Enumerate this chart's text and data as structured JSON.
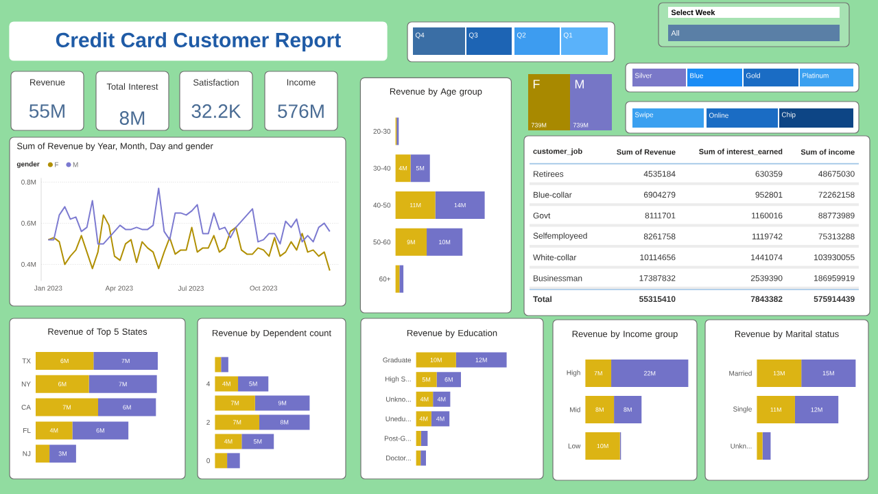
{
  "chart_data": [
    {
      "type": "other",
      "title": "Credit Card Customer Report",
      "annotations": [
        "Revenue",
        "55M",
        "Total Interest",
        "8M",
        "Satisfaction",
        "32.2K",
        "Income",
        "576M",
        "Q4",
        "Q3",
        "Q2",
        "Q1",
        "Select Week",
        "All",
        "Silver",
        "Blue",
        "Gold",
        "Platinum",
        "Swipe",
        "Online",
        "Chip"
      ]
    },
    {
      "type": "line",
      "title": "Sum of Revenue by Year, Month, Day and gender",
      "legend_title": "gender",
      "legend": "top left",
      "grid": "y",
      "x": [
        "2023-01-01",
        "2023-01-08",
        "2023-01-15",
        "2023-01-22",
        "2023-01-29",
        "2023-02-05",
        "2023-02-12",
        "2023-02-19",
        "2023-02-26",
        "2023-03-05",
        "2023-03-12",
        "2023-03-19",
        "2023-03-26",
        "2023-04-02",
        "2023-04-09",
        "2023-04-16",
        "2023-04-23",
        "2023-04-30",
        "2023-05-07",
        "2023-05-14",
        "2023-05-21",
        "2023-05-28",
        "2023-06-04",
        "2023-06-11",
        "2023-06-18",
        "2023-06-25",
        "2023-07-02",
        "2023-07-09",
        "2023-07-16",
        "2023-07-23",
        "2023-07-30",
        "2023-08-06",
        "2023-08-13",
        "2023-08-20",
        "2023-08-27",
        "2023-09-03",
        "2023-09-10",
        "2023-09-17",
        "2023-09-24",
        "2023-10-01",
        "2023-10-08",
        "2023-10-15",
        "2023-10-22",
        "2023-10-29",
        "2023-11-05",
        "2023-11-12",
        "2023-11-19",
        "2023-11-26",
        "2023-12-03",
        "2023-12-10",
        "2023-12-17",
        "2023-12-24"
      ],
      "xlim": [
        "2022-12-23",
        "2024-01-04"
      ],
      "xticks": [
        {
          "value": "2023-01-01",
          "label": "Jan 2023"
        },
        {
          "value": "2023-04-01",
          "label": "Apr 2023"
        },
        {
          "value": "2023-07-01",
          "label": "Jul 2023"
        },
        {
          "value": "2023-10-01",
          "label": "Oct 2023"
        }
      ],
      "ylim": [
        0.32,
        0.82
      ],
      "yticks": [
        {
          "value": 0.4,
          "label": "0.4M"
        },
        {
          "value": 0.6,
          "label": "0.6M"
        },
        {
          "value": 0.8,
          "label": "0.8M"
        }
      ],
      "series": [
        {
          "name": "F",
          "color": "#b08f00",
          "values": [
            0.52,
            0.53,
            0.51,
            0.4,
            0.44,
            0.47,
            0.54,
            0.46,
            0.38,
            0.46,
            0.64,
            0.59,
            0.44,
            0.42,
            0.5,
            0.52,
            0.41,
            0.51,
            0.48,
            0.46,
            0.38,
            0.46,
            0.53,
            0.45,
            0.47,
            0.47,
            0.58,
            0.46,
            0.48,
            0.48,
            0.54,
            0.46,
            0.48,
            0.56,
            0.58,
            0.47,
            0.45,
            0.45,
            0.48,
            0.47,
            0.44,
            0.53,
            0.44,
            0.46,
            0.51,
            0.47,
            0.55,
            0.46,
            0.47,
            0.44,
            0.46,
            0.37
          ]
        },
        {
          "name": "M",
          "color": "#7b79d0",
          "values": [
            0.52,
            0.52,
            0.64,
            0.68,
            0.62,
            0.63,
            0.56,
            0.58,
            0.71,
            0.5,
            0.5,
            0.53,
            0.56,
            0.59,
            0.57,
            0.57,
            0.58,
            0.57,
            0.57,
            0.59,
            0.77,
            0.56,
            0.52,
            0.65,
            0.65,
            0.64,
            0.66,
            0.69,
            0.55,
            0.55,
            0.65,
            0.57,
            0.58,
            0.53,
            0.58,
            0.61,
            0.64,
            0.67,
            0.51,
            0.52,
            0.55,
            0.55,
            0.5,
            0.61,
            0.58,
            0.62,
            0.51,
            0.54,
            0.51,
            0.58,
            0.6,
            0.56
          ]
        }
      ]
    },
    {
      "type": "bar",
      "orientation": "horizontal",
      "stacked": true,
      "tick_labels": "y",
      "title": "Revenue by Age group",
      "categories": [
        "20-30",
        "30-40",
        "40-50",
        "50-60",
        "60+"
      ],
      "series": [
        {
          "color": "#dcb414",
          "values": [
            0.3,
            4.2,
            11.1,
            8.7,
            1.1
          ],
          "value_labels": [
            null,
            "4M",
            "11M",
            "9M",
            null
          ]
        },
        {
          "color": "#7272c8",
          "values": [
            0.6,
            5.4,
            13.8,
            10.0,
            1.1
          ],
          "value_labels": [
            null,
            "5M",
            "14M",
            "10M",
            null
          ]
        }
      ]
    },
    {
      "type": "other",
      "categories": [
        "F",
        "M"
      ],
      "values": [
        739,
        739
      ],
      "value_labels": [
        "739M",
        "739M"
      ],
      "colors": [
        "#a88900",
        "#7676c6"
      ]
    },
    {
      "type": "other",
      "annotations": [
        "customer_job"
      ],
      "categories": [
        "Retirees",
        "Blue-collar",
        "Govt",
        "Selfemployeed",
        "White-collar",
        "Businessman",
        "Total"
      ],
      "series": [
        {
          "name": "Sum of Revenue",
          "values": [
            4535184,
            6904279,
            8111701,
            8261758,
            10114656,
            17387832,
            55315410
          ],
          "value_labels": [
            "4535184",
            "6904279",
            "8111701",
            "8261758",
            "10114656",
            "17387832",
            "55315410"
          ]
        },
        {
          "name": "Sum of interest_earned",
          "values": [
            630359,
            952801,
            1160016,
            1119742,
            1441074,
            2539390,
            7843382
          ],
          "value_labels": [
            "630359",
            "952801",
            "1160016",
            "1119742",
            "1441074",
            "2539390",
            "7843382"
          ]
        },
        {
          "name": "Sum of income",
          "values": [
            48675030,
            72262158,
            88773989,
            75313288,
            103930055,
            186959919,
            575914439
          ],
          "value_labels": [
            "48675030",
            "72262158",
            "88773989",
            "75313288",
            "103930055",
            "186959919",
            "575914439"
          ]
        }
      ]
    },
    {
      "type": "bar",
      "orientation": "horizontal",
      "stacked": true,
      "tick_labels": "y",
      "title": "Revenue of Top 5 States",
      "categories": [
        "TX",
        "NY",
        "CA",
        "FL",
        "NJ"
      ],
      "series": [
        {
          "color": "#dcb414",
          "values": [
            6.3,
            5.8,
            6.8,
            4.0,
            1.5
          ],
          "value_labels": [
            "6M",
            "6M",
            "7M",
            "4M",
            null
          ]
        },
        {
          "color": "#7272c8",
          "values": [
            7.0,
            7.4,
            6.3,
            6.1,
            2.9
          ],
          "value_labels": [
            "7M",
            "7M",
            "6M",
            "6M",
            "3M"
          ]
        }
      ]
    },
    {
      "type": "bar",
      "orientation": "horizontal",
      "stacked": true,
      "tick_labels": "y",
      "title": "Revenue by Dependent count",
      "categories": [
        null,
        "4",
        null,
        "2",
        null,
        "0"
      ],
      "series": [
        {
          "color": "#dcb414",
          "values": [
            1.0,
            3.8,
            6.6,
            7.3,
            4.4,
            2.0
          ],
          "value_labels": [
            null,
            "4M",
            "7M",
            "7M",
            "4M",
            null
          ]
        },
        {
          "color": "#7272c8",
          "values": [
            1.2,
            5.0,
            9.0,
            8.3,
            5.3,
            2.1
          ],
          "value_labels": [
            null,
            "5M",
            "9M",
            "8M",
            "5M",
            null
          ]
        }
      ]
    },
    {
      "type": "bar",
      "orientation": "horizontal",
      "stacked": true,
      "tick_labels": "y",
      "title": "Revenue by Education",
      "categories": [
        "Graduate",
        "High S...",
        "Unkno...",
        "Unedu...",
        "Post-G...",
        "Doctor..."
      ],
      "series": [
        {
          "color": "#dcb414",
          "values": [
            9.7,
            5.0,
            4.1,
            3.7,
            1.2,
            1.1
          ],
          "value_labels": [
            "10M",
            "5M",
            "4M",
            "4M",
            null,
            null
          ]
        },
        {
          "color": "#7272c8",
          "values": [
            12.3,
            5.9,
            4.2,
            4.4,
            1.6,
            1.3
          ],
          "value_labels": [
            "12M",
            "6M",
            "4M",
            "4M",
            null,
            null
          ]
        }
      ]
    },
    {
      "type": "bar",
      "orientation": "horizontal",
      "stacked": true,
      "tick_labels": "y",
      "title": "Revenue by Income group",
      "categories": [
        "High",
        "Mid",
        "Low"
      ],
      "series": [
        {
          "color": "#dcb414",
          "values": [
            7.4,
            8.2,
            9.9
          ],
          "value_labels": [
            "7M",
            "8M",
            "10M"
          ]
        },
        {
          "color": "#7272c8",
          "values": [
            22.1,
            7.9,
            0.3
          ],
          "value_labels": [
            "22M",
            "8M",
            null
          ]
        }
      ]
    },
    {
      "type": "bar",
      "orientation": "horizontal",
      "stacked": true,
      "tick_labels": "y",
      "title": "Revenue by Marital status",
      "categories": [
        "Married",
        "Single",
        "Unkn..."
      ],
      "series": [
        {
          "color": "#dcb414",
          "values": [
            12.6,
            10.8,
            1.6
          ],
          "value_labels": [
            "13M",
            "11M",
            null
          ]
        },
        {
          "color": "#7272c8",
          "values": [
            15.4,
            12.3,
            2.3
          ],
          "value_labels": [
            "15M",
            "12M",
            null
          ]
        }
      ]
    }
  ]
}
